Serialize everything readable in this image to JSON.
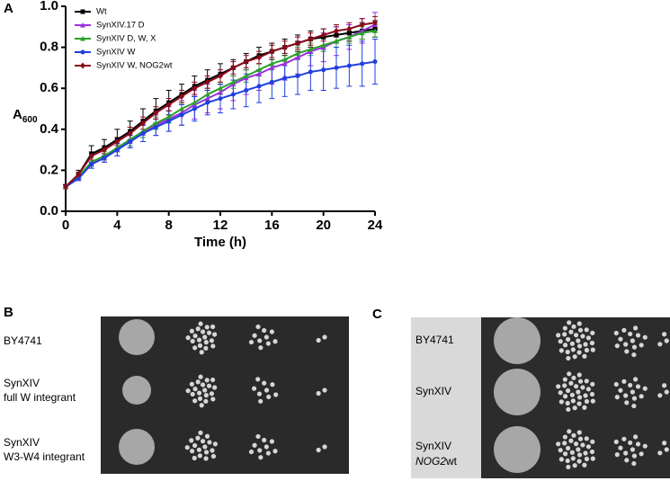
{
  "panel_labels": [
    "A",
    "B",
    "C"
  ],
  "chart_data": {
    "type": "line",
    "xlabel": "Time (h)",
    "ylabel": "A",
    "ylabel_subscript": "600",
    "x": [
      0,
      1,
      2,
      3,
      4,
      5,
      6,
      7,
      8,
      9,
      10,
      11,
      12,
      13,
      14,
      15,
      16,
      17,
      18,
      19,
      20,
      21,
      22,
      23,
      24
    ],
    "xlim": [
      0,
      24
    ],
    "xticks": [
      0,
      4,
      8,
      12,
      16,
      20,
      24
    ],
    "ylim": [
      0,
      1
    ],
    "yticks": [
      {
        "value": 0,
        "label": "0.0"
      },
      0.2,
      0.4,
      0.6,
      0.8,
      {
        "value": 1,
        "label": "1.0"
      }
    ],
    "legend": "top-left",
    "series": [
      {
        "name": "Wt",
        "color": "#000000",
        "marker": "square",
        "values": [
          0.12,
          0.18,
          0.28,
          0.31,
          0.35,
          0.39,
          0.44,
          0.49,
          0.53,
          0.57,
          0.61,
          0.64,
          0.67,
          0.7,
          0.73,
          0.76,
          0.78,
          0.8,
          0.82,
          0.84,
          0.85,
          0.86,
          0.87,
          0.88,
          0.89
        ],
        "errors": [
          0.01,
          0.02,
          0.04,
          0.04,
          0.05,
          0.05,
          0.06,
          0.06,
          0.06,
          0.05,
          0.05,
          0.05,
          0.05,
          0.04,
          0.04,
          0.04,
          0.04,
          0.04,
          0.04,
          0.04,
          0.04,
          0.04,
          0.04,
          0.04,
          0.04
        ]
      },
      {
        "name": "SynXIV.17 D",
        "color": "#9b30e0",
        "marker": "triangle",
        "values": [
          0.12,
          0.16,
          0.23,
          0.26,
          0.3,
          0.34,
          0.38,
          0.42,
          0.45,
          0.48,
          0.52,
          0.55,
          0.58,
          0.62,
          0.65,
          0.67,
          0.7,
          0.72,
          0.75,
          0.78,
          0.8,
          0.83,
          0.85,
          0.88,
          0.91
        ],
        "errors": [
          0.01,
          0.01,
          0.02,
          0.02,
          0.03,
          0.03,
          0.04,
          0.05,
          0.06,
          0.06,
          0.07,
          0.07,
          0.08,
          0.08,
          0.08,
          0.08,
          0.08,
          0.08,
          0.08,
          0.07,
          0.07,
          0.07,
          0.06,
          0.06,
          0.06
        ]
      },
      {
        "name": "SynXIV D, W, X",
        "color": "#2ca02c",
        "marker": "triangle",
        "values": [
          0.12,
          0.17,
          0.24,
          0.27,
          0.31,
          0.35,
          0.39,
          0.43,
          0.46,
          0.5,
          0.53,
          0.57,
          0.6,
          0.63,
          0.66,
          0.69,
          0.72,
          0.74,
          0.77,
          0.79,
          0.81,
          0.83,
          0.85,
          0.87,
          0.88
        ],
        "errors": [
          0.01,
          0.01,
          0.02,
          0.02,
          0.02,
          0.03,
          0.03,
          0.03,
          0.03,
          0.03,
          0.03,
          0.03,
          0.03,
          0.03,
          0.03,
          0.03,
          0.03,
          0.03,
          0.03,
          0.03,
          0.03,
          0.03,
          0.03,
          0.03,
          0.03
        ]
      },
      {
        "name": "SynXIV W",
        "color": "#1f3fe0",
        "marker": "circle",
        "values": [
          0.12,
          0.16,
          0.23,
          0.26,
          0.3,
          0.34,
          0.38,
          0.41,
          0.44,
          0.47,
          0.5,
          0.53,
          0.55,
          0.57,
          0.59,
          0.61,
          0.63,
          0.65,
          0.66,
          0.68,
          0.69,
          0.7,
          0.71,
          0.72,
          0.73
        ],
        "errors": [
          0.01,
          0.01,
          0.02,
          0.02,
          0.03,
          0.03,
          0.04,
          0.04,
          0.05,
          0.05,
          0.06,
          0.06,
          0.07,
          0.07,
          0.08,
          0.08,
          0.08,
          0.09,
          0.09,
          0.09,
          0.1,
          0.1,
          0.1,
          0.11,
          0.11
        ]
      },
      {
        "name": "SynXIV W, NOG2wt",
        "color": "#8b0a1a",
        "marker": "diamond",
        "values": [
          0.12,
          0.18,
          0.27,
          0.3,
          0.34,
          0.38,
          0.43,
          0.48,
          0.52,
          0.56,
          0.6,
          0.63,
          0.66,
          0.7,
          0.73,
          0.75,
          0.78,
          0.8,
          0.82,
          0.84,
          0.86,
          0.88,
          0.89,
          0.91,
          0.92
        ],
        "errors": [
          0.01,
          0.01,
          0.02,
          0.02,
          0.02,
          0.03,
          0.03,
          0.03,
          0.03,
          0.03,
          0.03,
          0.03,
          0.03,
          0.03,
          0.03,
          0.03,
          0.03,
          0.03,
          0.03,
          0.03,
          0.03,
          0.03,
          0.03,
          0.03,
          0.03
        ]
      }
    ]
  },
  "panel_b": {
    "rows": [
      [
        "BY4741"
      ],
      [
        "SynXIV",
        "full W integrant"
      ],
      [
        "SynXIV",
        "W3-W4 integrant"
      ]
    ]
  },
  "panel_c": {
    "rows": [
      {
        "line1": "BY4741"
      },
      {
        "line1": "SynXIV"
      },
      {
        "line1": "SynXIV",
        "gene": "NOG2",
        "suffix": "wt"
      }
    ]
  }
}
